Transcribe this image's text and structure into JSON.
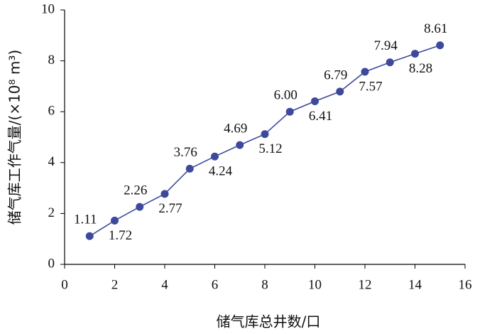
{
  "chart_data": {
    "type": "line",
    "x_label": "储气库总井数/口",
    "y_label": "储气库工作气量/(×10⁸ m³)",
    "x": [
      1,
      2,
      3,
      4,
      5,
      6,
      7,
      8,
      9,
      10,
      11,
      12,
      13,
      14,
      15
    ],
    "values": [
      1.11,
      1.72,
      2.26,
      2.77,
      3.76,
      4.24,
      4.69,
      5.12,
      6.0,
      6.41,
      6.79,
      7.57,
      7.94,
      8.28,
      8.61
    ],
    "value_labels": [
      "1.11",
      "1.72",
      "2.26",
      "2.77",
      "3.76",
      "4.24",
      "4.69",
      "5.12",
      "6.00",
      "6.41",
      "6.79",
      "7.57",
      "7.94",
      "8.28",
      "8.61"
    ],
    "color": "#3d4a9c",
    "xlim": [
      0,
      16
    ],
    "xticks": [
      0,
      2,
      4,
      6,
      8,
      10,
      12,
      14,
      16
    ],
    "ylim": [
      0,
      10
    ],
    "yticks": [
      0,
      2,
      4,
      6,
      8,
      10
    ],
    "grid": false
  }
}
